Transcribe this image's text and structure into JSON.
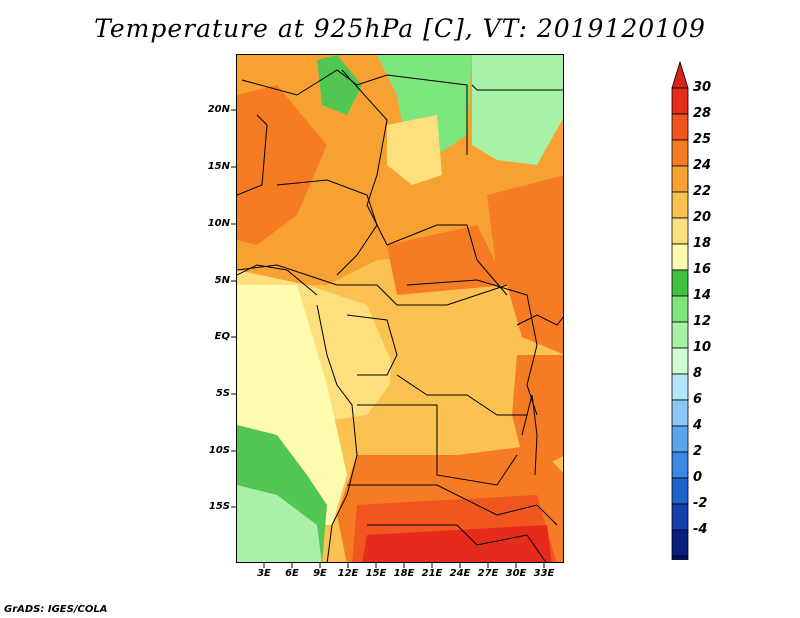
{
  "title": "Temperature at 925hPa [C], VT: 2019120109",
  "footer": "GrADS: IGES/COLA",
  "y_axis": {
    "ticks": [
      "20N",
      "15N",
      "10N",
      "5N",
      "EQ",
      "5S",
      "10S",
      "15S"
    ],
    "lat_values": [
      20,
      15,
      10,
      5,
      0,
      -5,
      -10,
      -15
    ],
    "lat_range": [
      -20,
      24.5
    ]
  },
  "x_axis": {
    "ticks": [
      "3E",
      "6E",
      "9E",
      "12E",
      "15E",
      "18E",
      "21E",
      "24E",
      "27E",
      "30E",
      "33E"
    ],
    "lon_values": [
      3,
      6,
      9,
      12,
      15,
      18,
      21,
      24,
      27,
      30,
      33
    ],
    "lon_range": [
      0,
      34.8
    ]
  },
  "colorbar": {
    "levels": [
      "30",
      "28",
      "25",
      "24",
      "22",
      "20",
      "18",
      "16",
      "14",
      "12",
      "10",
      "8",
      "6",
      "4",
      "2",
      "0",
      "-2",
      "-4"
    ],
    "colors": [
      "#e52c1c",
      "#f0561e",
      "#f57c25",
      "#f8a133",
      "#fbc251",
      "#fde07d",
      "#fdfbae",
      "#3fc33f",
      "#7de67d",
      "#a7f2a7",
      "#d2fcd2",
      "#b4e6fb",
      "#8cc8f6",
      "#5aa6ee",
      "#3c87e3",
      "#1f63d1",
      "#1441ad",
      "#0a1e82",
      "#051064"
    ],
    "over_color": "#d62318",
    "under_color": "#dcdcf6"
  },
  "colors": {
    "ocean_south": "#aaf0a8",
    "ocean_green": "#52c652"
  }
}
